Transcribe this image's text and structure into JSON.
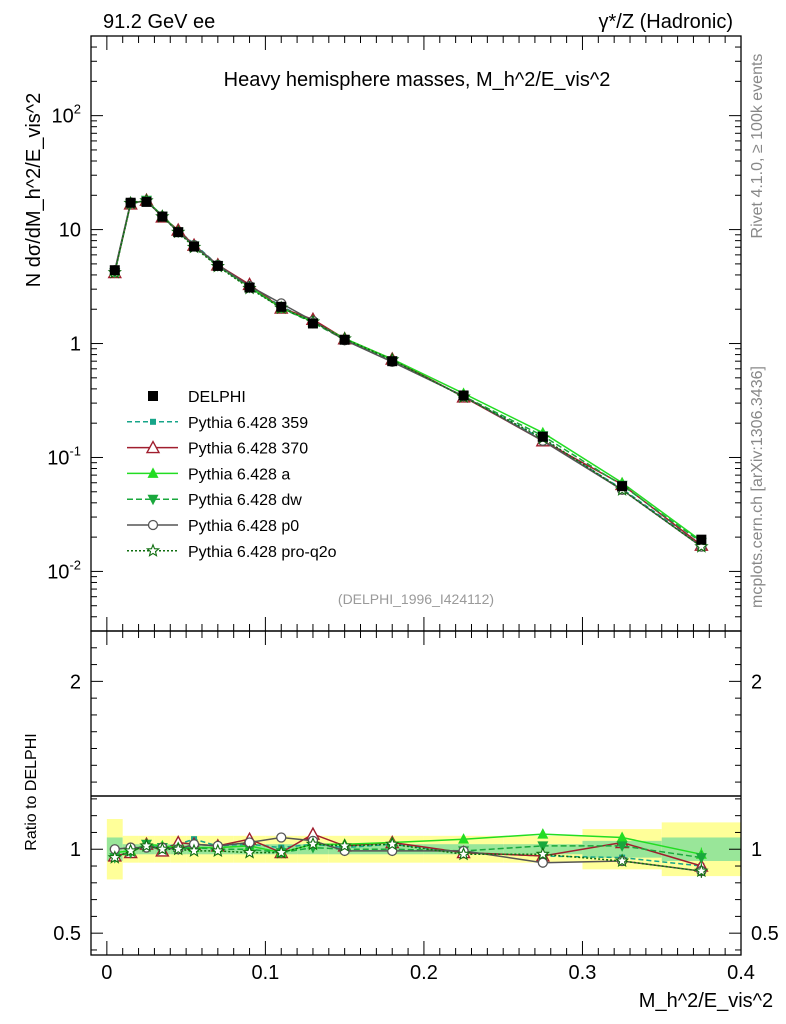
{
  "header": {
    "left": "91.2 GeV ee",
    "right": "γ*/Z (Hadronic)"
  },
  "side_labels": {
    "rivet": "Rivet 4.1.0, ≥ 100k events",
    "mcplots": "mcplots.cern.ch [arXiv:1306.3436]"
  },
  "chart_data": [
    {
      "type": "line",
      "panel": "main",
      "title": "Heavy hemisphere masses, M_h^2/E_vis^2",
      "ylabel": "N dσ/dM_h^2/E_vis^2",
      "yscale": "log",
      "xlim": [
        -0.01,
        0.4
      ],
      "ylim": [
        0.003,
        500
      ],
      "reference_label": "(DELPHI_1996_I424112)",
      "ytick_labels": [
        "10^-2",
        "10^-1",
        "1",
        "10",
        "10^2"
      ],
      "x": [
        0.005,
        0.015,
        0.025,
        0.035,
        0.045,
        0.055,
        0.07,
        0.09,
        0.11,
        0.13,
        0.15,
        0.18,
        0.225,
        0.275,
        0.325,
        0.375
      ],
      "series": [
        {
          "name": "DELPHI",
          "color": "#000000",
          "marker": "square",
          "values": [
            4.4,
            17.2,
            17.5,
            13.0,
            9.5,
            7.1,
            4.8,
            3.1,
            2.1,
            1.5,
            1.08,
            0.7,
            0.35,
            0.152,
            0.056,
            0.019
          ]
        },
        {
          "name": "Pythia 6.428 359",
          "color": "#17a589",
          "marker": "small-square",
          "values": [
            4.3,
            17.0,
            17.9,
            13.2,
            9.8,
            7.5,
            4.9,
            3.2,
            2.12,
            1.55,
            1.09,
            0.72,
            0.34,
            0.145,
            0.053,
            0.017
          ]
        },
        {
          "name": "Pythia 6.428 370",
          "color": "#a01e2e",
          "marker": "open-triangle",
          "values": [
            4.2,
            16.8,
            18.1,
            12.9,
            9.9,
            7.3,
            4.9,
            3.3,
            2.05,
            1.63,
            1.1,
            0.73,
            0.34,
            0.14,
            0.058,
            0.017
          ]
        },
        {
          "name": "Pythia 6.428 a",
          "color": "#22dd22",
          "marker": "triangle",
          "values": [
            4.3,
            17.1,
            18.0,
            13.3,
            9.6,
            7.2,
            4.85,
            3.15,
            2.05,
            1.55,
            1.11,
            0.73,
            0.365,
            0.165,
            0.06,
            0.0185
          ]
        },
        {
          "name": "Pythia 6.428 dw",
          "color": "#1aa83c",
          "marker": "inverted-triangle",
          "values": [
            4.2,
            16.8,
            18.1,
            13.1,
            9.5,
            7.2,
            4.8,
            3.1,
            2.05,
            1.52,
            1.08,
            0.7,
            0.345,
            0.155,
            0.057,
            0.018
          ]
        },
        {
          "name": "Pythia 6.428 p0",
          "color": "#555555",
          "marker": "open-circle",
          "values": [
            4.4,
            17.3,
            17.7,
            13.1,
            9.5,
            7.3,
            4.9,
            3.2,
            2.25,
            1.58,
            1.07,
            0.69,
            0.345,
            0.14,
            0.052,
            0.0165
          ]
        },
        {
          "name": "Pythia 6.428 pro-q2o",
          "color": "#0f6e0f",
          "marker": "open-star",
          "values": [
            4.2,
            17.0,
            17.9,
            13.0,
            9.5,
            7.0,
            4.75,
            3.05,
            2.05,
            1.55,
            1.1,
            0.72,
            0.34,
            0.148,
            0.052,
            0.0165
          ]
        }
      ]
    },
    {
      "type": "line",
      "panel": "ratio",
      "ylabel": "Ratio to DELPHI",
      "xlabel": "M_h^2/E_vis^2",
      "ylim": [
        0.37,
        2.3
      ],
      "ytick_labels": [
        "0.5",
        "1",
        "2"
      ],
      "xtick_labels": [
        "0",
        "0.1",
        "0.2",
        "0.3",
        "0.4"
      ],
      "x": [
        0.005,
        0.015,
        0.025,
        0.035,
        0.045,
        0.055,
        0.07,
        0.09,
        0.11,
        0.13,
        0.15,
        0.18,
        0.225,
        0.275,
        0.325,
        0.375
      ],
      "bin_edges": [
        0.0,
        0.01,
        0.02,
        0.03,
        0.04,
        0.05,
        0.06,
        0.08,
        0.1,
        0.12,
        0.14,
        0.16,
        0.2,
        0.25,
        0.3,
        0.35,
        0.4
      ],
      "band_total": [
        0.18,
        0.08,
        0.08,
        0.08,
        0.08,
        0.08,
        0.08,
        0.08,
        0.08,
        0.08,
        0.08,
        0.08,
        0.08,
        0.08,
        0.12,
        0.16
      ],
      "band_stat": [
        0.07,
        0.03,
        0.03,
        0.03,
        0.03,
        0.03,
        0.03,
        0.03,
        0.03,
        0.03,
        0.03,
        0.03,
        0.03,
        0.03,
        0.05,
        0.07
      ],
      "series": [
        {
          "name": "Pythia 6.428 359",
          "values": [
            0.98,
            0.99,
            1.02,
            1.01,
            1.03,
            1.06,
            1.02,
            1.03,
            1.01,
            1.03,
            1.01,
            1.03,
            0.98,
            0.96,
            0.95,
            0.9
          ]
        },
        {
          "name": "Pythia 6.428 370",
          "values": [
            0.96,
            0.98,
            1.03,
            0.99,
            1.04,
            1.03,
            1.02,
            1.06,
            0.98,
            1.09,
            1.02,
            1.04,
            0.98,
            0.96,
            1.04,
            0.9
          ]
        },
        {
          "name": "Pythia 6.428 a",
          "values": [
            0.98,
            0.99,
            1.03,
            1.02,
            1.01,
            1.01,
            1.01,
            1.02,
            0.98,
            1.03,
            1.03,
            1.04,
            1.06,
            1.09,
            1.07,
            0.97
          ]
        },
        {
          "name": "Pythia 6.428 dw",
          "values": [
            0.95,
            0.98,
            1.03,
            1.01,
            1.0,
            1.01,
            1.0,
            1.0,
            0.98,
            1.01,
            1.0,
            1.0,
            0.99,
            1.02,
            1.02,
            0.95
          ]
        },
        {
          "name": "Pythia 6.428 p0",
          "values": [
            1.0,
            1.01,
            1.01,
            1.01,
            1.0,
            1.03,
            1.02,
            1.04,
            1.07,
            1.05,
            0.99,
            0.99,
            0.99,
            0.92,
            0.93,
            0.87
          ]
        },
        {
          "name": "Pythia 6.428 pro-q2o",
          "values": [
            0.95,
            0.99,
            1.02,
            1.0,
            1.0,
            0.99,
            0.99,
            0.98,
            0.98,
            1.03,
            1.02,
            1.03,
            0.97,
            0.97,
            0.93,
            0.87
          ]
        }
      ]
    }
  ]
}
